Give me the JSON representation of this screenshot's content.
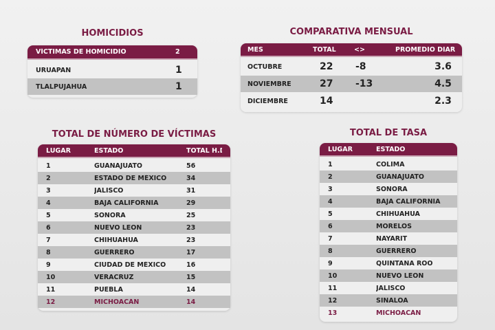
{
  "homicidios": {
    "title": "HOMICIDIOS",
    "header": {
      "label": "VÍCTIMAS DE HOMICIDIO",
      "value": "2"
    },
    "rows": [
      {
        "label": "URUAPAN",
        "value": "1"
      },
      {
        "label": "TLALPUJAHUA",
        "value": "1"
      }
    ]
  },
  "mensual": {
    "title": "COMPARATIVA MENSUAL",
    "headers": [
      "MES",
      "TOTAL",
      "<>",
      "PROMEDIO DIARIO"
    ],
    "rows": [
      [
        "OCTUBRE",
        "22",
        "-8",
        "3.6"
      ],
      [
        "NOVIEMBRE",
        "27",
        "-13",
        "4.5"
      ],
      [
        "DICIEMBRE",
        "14",
        "",
        "2.3"
      ]
    ]
  },
  "victimas": {
    "title": "TOTAL DE NÚMERO DE VÍCTIMAS",
    "headers": [
      "LUGAR",
      "ESTADO",
      "TOTAL H.D."
    ],
    "rows": [
      [
        "1",
        "GUANAJUATO",
        "56"
      ],
      [
        "2",
        "ESTADO DE MÉXICO",
        "34"
      ],
      [
        "3",
        "JALISCO",
        "31"
      ],
      [
        "4",
        "BAJA CALIFORNIA",
        "29"
      ],
      [
        "5",
        "SONORA",
        "25"
      ],
      [
        "6",
        "NUEVO LEÓN",
        "23"
      ],
      [
        "7",
        "CHIHUAHUA",
        "23"
      ],
      [
        "8",
        "GUERRERO",
        "17"
      ],
      [
        "9",
        "CIUDAD DE MÉXICO",
        "16"
      ],
      [
        "10",
        "VERACRUZ",
        "15"
      ],
      [
        "11",
        "PUEBLA",
        "14"
      ],
      [
        "12",
        "MICHOACÁN",
        "14"
      ]
    ]
  },
  "tasa": {
    "title": "TOTAL DE TASA",
    "headers": [
      "LUGAR",
      "ESTADO"
    ],
    "rows": [
      [
        "1",
        "COLIMA"
      ],
      [
        "2",
        "GUANAJUATO"
      ],
      [
        "3",
        "SONORA"
      ],
      [
        "4",
        "BAJA CALIFORNIA"
      ],
      [
        "5",
        "CHIHUAHUA"
      ],
      [
        "6",
        "MORELOS"
      ],
      [
        "7",
        "NAYARIT"
      ],
      [
        "8",
        "GUERRERO"
      ],
      [
        "9",
        "QUINTANA ROO"
      ],
      [
        "10",
        "NUEVO LEÓN"
      ],
      [
        "11",
        "JALISCO"
      ],
      [
        "12",
        "SINALOA"
      ],
      [
        "13",
        "MICHOACÁN"
      ]
    ]
  },
  "colors": {
    "brand": "#7a1c44",
    "alt_row": "#c2c2c2"
  },
  "highlight": "MICHOACÁN"
}
